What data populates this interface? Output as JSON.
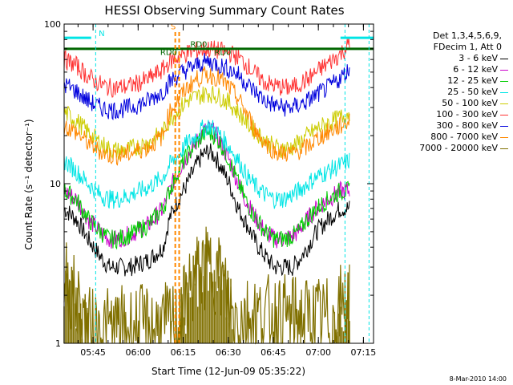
{
  "chart_data": {
    "type": "line",
    "title": "HESSI Observing Summary Count Rates",
    "xlabel": "Start Time (12-Jun-09 05:35:22)",
    "ylabel": "Count Rate (s⁻¹ detector⁻¹)",
    "yscale": "log",
    "ylim": [
      1,
      100
    ],
    "xlim_minutes": [
      0,
      103
    ],
    "x_ticks": [
      "05:45",
      "06:00",
      "06:15",
      "06:30",
      "06:45",
      "07:00",
      "07:15"
    ],
    "y_ticks": [
      "1",
      "10",
      "100"
    ],
    "legend_header": [
      "Det 1,3,4,5,6,9,",
      "FDecim 1, Att 0"
    ],
    "grid": false,
    "legend_position": "right",
    "series": [
      {
        "name": "3 - 6 keV",
        "color": "#000000",
        "x": [
          0,
          4,
          8,
          12,
          15,
          18,
          22,
          28,
          33,
          35,
          38,
          41,
          44,
          46,
          48,
          50,
          52,
          55,
          58,
          61,
          64,
          67,
          70,
          73,
          76,
          78,
          81,
          84,
          88,
          92,
          95
        ],
        "y": [
          7,
          6,
          4.5,
          3.5,
          3.0,
          3.0,
          3.0,
          3.3,
          4.0,
          6,
          8,
          10,
          13,
          15,
          16,
          15,
          13,
          10,
          7,
          5.5,
          4.2,
          3.5,
          3.0,
          3.0,
          3.0,
          3.3,
          4,
          5,
          6,
          7,
          7
        ]
      },
      {
        "name": "6 - 12 keV",
        "color": "#cc00cc",
        "x": [
          0,
          4,
          8,
          12,
          15,
          18,
          22,
          28,
          33,
          35,
          38,
          41,
          44,
          46,
          48,
          50,
          52,
          55,
          58,
          61,
          64,
          67,
          70,
          73,
          76,
          78,
          81,
          84,
          88,
          92,
          95
        ],
        "y": [
          9,
          8,
          6,
          5,
          4.5,
          4.5,
          4.8,
          5.5,
          7,
          9,
          12,
          15,
          18,
          21,
          22,
          21,
          18,
          14,
          10,
          7.5,
          6,
          5,
          4.5,
          4.5,
          4.7,
          5,
          6,
          7,
          8,
          9,
          9
        ]
      },
      {
        "name": "12 - 25 keV",
        "color": "#00cc00",
        "x": [
          0,
          4,
          8,
          12,
          15,
          18,
          22,
          28,
          33,
          35,
          38,
          41,
          44,
          46,
          48,
          50,
          52,
          55,
          58,
          61,
          64,
          67,
          70,
          73,
          76,
          78,
          81,
          84,
          88,
          92,
          95
        ],
        "y": [
          9,
          8,
          6,
          5,
          4.5,
          4.5,
          4.8,
          5.5,
          7,
          9,
          12,
          15,
          18,
          20,
          21,
          20,
          18,
          14,
          10,
          7.5,
          6,
          5,
          4.5,
          4.5,
          4.7,
          5,
          6,
          7,
          8,
          9,
          9
        ]
      },
      {
        "name": "25 - 50 keV",
        "color": "#00e5e5",
        "x": [
          0,
          4,
          8,
          12,
          15,
          18,
          22,
          28,
          33,
          35,
          38,
          41,
          44,
          46,
          48,
          50,
          52,
          55,
          58,
          61,
          64,
          67,
          70,
          73,
          76,
          78,
          81,
          84,
          88,
          92,
          95
        ],
        "y": [
          14,
          12,
          10,
          8.5,
          8,
          8,
          8.5,
          9.5,
          11,
          13,
          15,
          18,
          20,
          22,
          23,
          22,
          20,
          17,
          14,
          11,
          9.5,
          8.5,
          8,
          8,
          8.5,
          9,
          10,
          11,
          12,
          13,
          14
        ]
      },
      {
        "name": "50 - 100 keV",
        "color": "#cccc00",
        "x": [
          0,
          4,
          8,
          12,
          15,
          18,
          22,
          28,
          33,
          35,
          38,
          41,
          44,
          46,
          48,
          50,
          52,
          55,
          58,
          61,
          64,
          67,
          70,
          73,
          76,
          78,
          81,
          84,
          88,
          92,
          95
        ],
        "y": [
          28,
          25,
          21,
          18,
          16.5,
          16,
          16.5,
          18,
          21,
          25,
          29,
          33,
          35,
          36,
          37,
          36,
          35,
          32,
          28,
          24,
          21,
          18.5,
          17,
          16.5,
          17,
          18,
          20,
          22,
          24,
          26,
          28
        ]
      },
      {
        "name": "100 - 300 keV",
        "color": "#ff3333",
        "x": [
          0,
          4,
          8,
          12,
          15,
          18,
          22,
          28,
          33,
          35,
          38,
          41,
          44,
          46,
          48,
          50,
          52,
          55,
          58,
          61,
          64,
          67,
          70,
          73,
          76,
          78,
          81,
          84,
          88,
          92,
          95
        ],
        "y": [
          60,
          55,
          47,
          42,
          40,
          40,
          41,
          45,
          52,
          58,
          62,
          66,
          68,
          69,
          70,
          69,
          68,
          66,
          62,
          55,
          48,
          43,
          41,
          40,
          40,
          42,
          45,
          50,
          57,
          65,
          75
        ]
      },
      {
        "name": "300 - 800 keV",
        "color": "#0000dd",
        "x": [
          0,
          4,
          8,
          12,
          15,
          18,
          22,
          28,
          33,
          35,
          38,
          41,
          44,
          46,
          48,
          50,
          52,
          55,
          58,
          61,
          64,
          67,
          70,
          73,
          76,
          78,
          81,
          84,
          88,
          92,
          95
        ],
        "y": [
          42,
          38,
          33,
          30,
          29,
          29,
          30,
          33,
          38,
          43,
          48,
          52,
          55,
          57,
          58,
          57,
          55,
          52,
          48,
          42,
          37,
          33,
          31,
          30,
          30,
          31,
          33,
          36,
          40,
          46,
          52
        ]
      },
      {
        "name": "800 - 7000 keV",
        "color": "#ff8800",
        "x": [
          0,
          4,
          8,
          12,
          15,
          18,
          22,
          28,
          33,
          35,
          38,
          41,
          44,
          46,
          48,
          50,
          52,
          55,
          58,
          61,
          64,
          67,
          70,
          73,
          76,
          78,
          81,
          84,
          88,
          92,
          95
        ],
        "y": [
          23,
          21,
          18,
          16,
          15,
          15,
          15.5,
          17,
          20,
          28,
          34,
          40,
          45,
          47,
          48,
          47,
          45,
          40,
          34,
          27,
          21,
          18,
          16,
          15.5,
          15.5,
          16,
          17,
          19,
          21,
          23,
          25
        ]
      },
      {
        "name": "7000 - 20000 keV",
        "color": "#807000",
        "x": [
          0,
          3,
          6,
          8,
          38,
          40,
          42,
          44,
          46,
          48,
          49,
          50,
          52,
          54,
          56,
          90,
          92,
          95
        ],
        "y": [
          2.6,
          2.0,
          1.5,
          1.2,
          1.3,
          1.7,
          2.2,
          2.6,
          2.8,
          2.9,
          3.0,
          2.9,
          2.6,
          2.0,
          1.5,
          1.4,
          1.7,
          1.8
        ]
      }
    ],
    "annotations": [
      "N",
      "S",
      "RD0",
      "RD0",
      "RD0"
    ]
  },
  "legend": {
    "header": [
      "Det 1,3,4,5,6,9,",
      "FDecim 1, Att 0"
    ],
    "entries": [
      {
        "label": "3 - 6 keV",
        "color": "#000000"
      },
      {
        "label": "6 - 12 keV",
        "color": "#cc00cc"
      },
      {
        "label": "12 - 25 keV",
        "color": "#00cc00"
      },
      {
        "label": "25 - 50 keV",
        "color": "#00e5e5"
      },
      {
        "label": "50 - 100 keV",
        "color": "#cccc00"
      },
      {
        "label": "100 - 300 keV",
        "color": "#ff3333"
      },
      {
        "label": "300 - 800 keV",
        "color": "#0000dd"
      },
      {
        "label": "800 - 7000 keV",
        "color": "#ff8800"
      },
      {
        "label": "7000 - 20000 keV",
        "color": "#807000"
      }
    ]
  },
  "footer_date": "8-Mar-2010 14:00"
}
